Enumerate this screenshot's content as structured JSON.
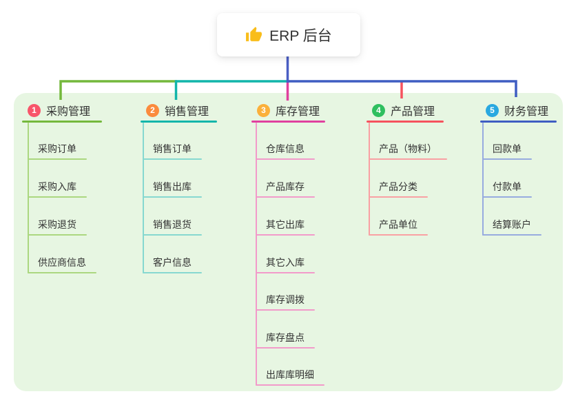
{
  "root": {
    "label": "ERP 后台",
    "icon": "thumbs-up"
  },
  "colors": {
    "canvas_bg": "#ffffff",
    "panel_bg": "#e7f6e2",
    "root_card_bg": "#ffffff",
    "root_connector": "#4a5ec4",
    "text": "#333333",
    "badge_text": "#ffffff",
    "thumb_icon": "#f9bd1a"
  },
  "branches": [
    {
      "index": "1",
      "label": "采购管理",
      "badge_color": "#f8556a",
      "line_color": "#74b83c",
      "child_line_color": "#abd77f",
      "children": [
        "采购订单",
        "采购入库",
        "采购退货",
        "供应商信息"
      ]
    },
    {
      "index": "2",
      "label": "销售管理",
      "badge_color": "#fb8b3d",
      "line_color": "#12b5aa",
      "child_line_color": "#86d8d0",
      "children": [
        "销售订单",
        "销售出库",
        "销售退货",
        "客户信息"
      ]
    },
    {
      "index": "3",
      "label": "库存管理",
      "badge_color": "#fbb03b",
      "line_color": "#e0409f",
      "child_line_color": "#f29aca",
      "children": [
        "仓库信息",
        "产品库存",
        "其它出库",
        "其它入库",
        "库存调拨",
        "库存盘点",
        "出库库明细"
      ]
    },
    {
      "index": "4",
      "label": "产品管理",
      "badge_color": "#2fbf5f",
      "line_color": "#f6525e",
      "child_line_color": "#f9a0a3",
      "children": [
        "产品（物料）",
        "产品分类",
        "产品单位"
      ]
    },
    {
      "index": "5",
      "label": "财务管理",
      "badge_color": "#29a8e0",
      "line_color": "#3f5dc2",
      "child_line_color": "#97abdf",
      "children": [
        "回款单",
        "付款单",
        "结算账户"
      ]
    }
  ]
}
